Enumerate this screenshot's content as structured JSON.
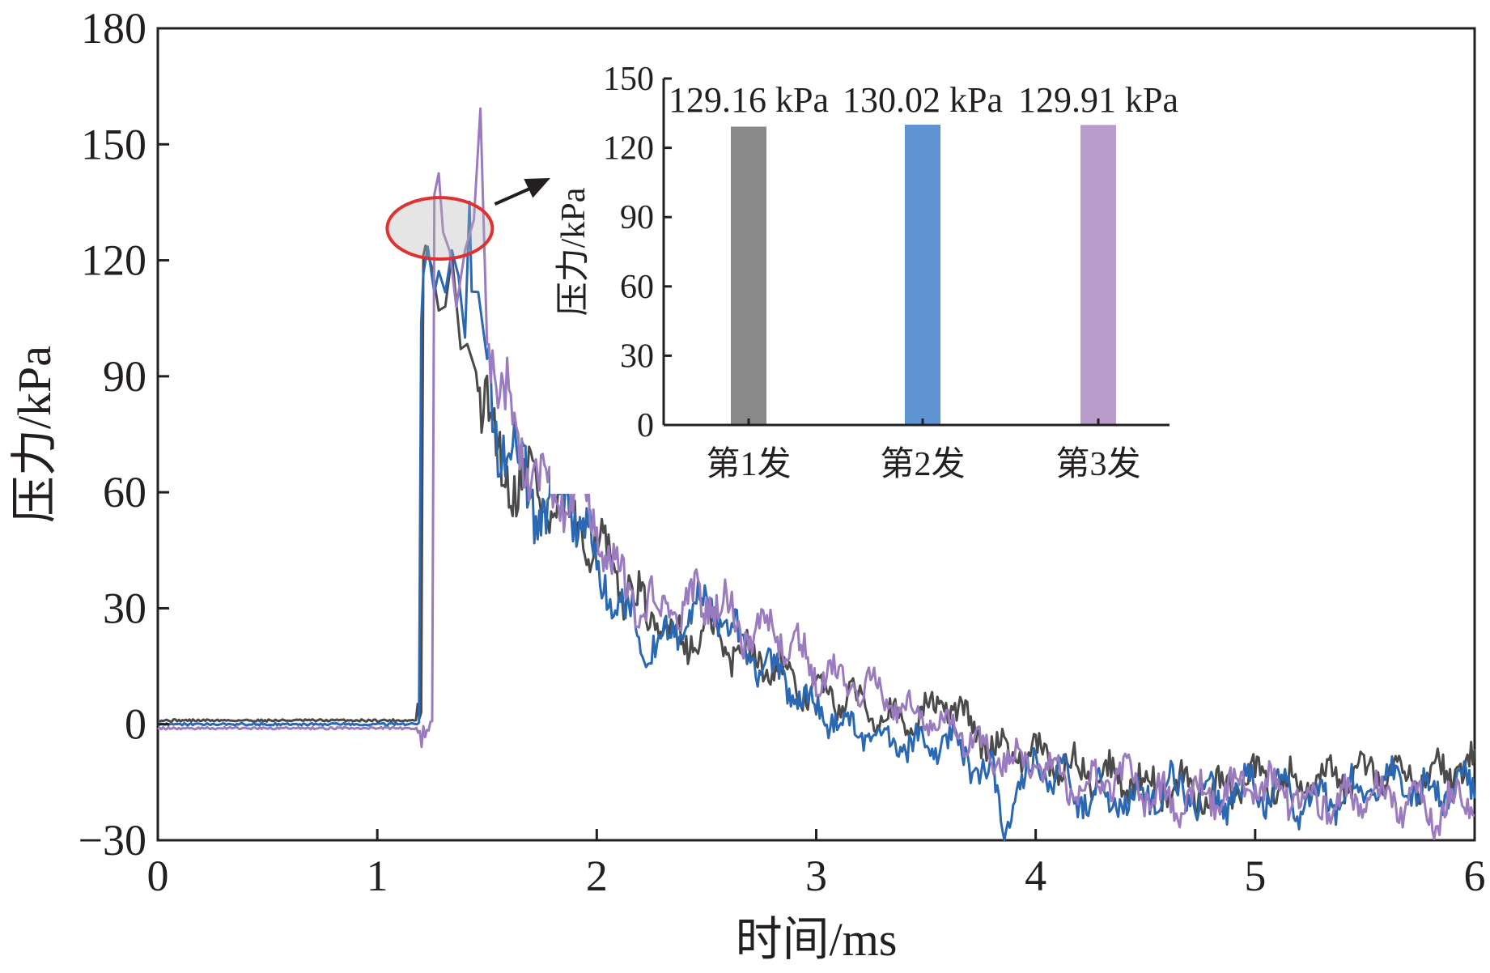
{
  "chart_data": [
    {
      "type": "line",
      "xlabel": "时间/ms",
      "ylabel": "压力/kPa",
      "xlim": [
        0,
        6
      ],
      "ylim": [
        -30,
        180
      ],
      "xticks": [
        "0",
        "1",
        "2",
        "3",
        "4",
        "5",
        "6"
      ],
      "yticks": [
        "−30",
        "0",
        "30",
        "60",
        "90",
        "120",
        "150",
        "180"
      ],
      "grid": false,
      "series": [
        {
          "color": "#4a4a4a",
          "x": [
            0,
            1.2,
            1.21,
            1.22,
            1.25,
            1.28,
            1.31,
            1.34,
            1.38,
            1.41,
            1.45,
            1.5,
            1.55,
            1.6,
            1.7,
            1.8,
            1.9,
            2.0,
            2.1,
            2.2,
            2.3,
            2.4,
            2.5,
            2.6,
            2.7,
            2.8,
            2.9,
            3.0,
            3.2,
            3.4,
            3.6,
            3.8,
            4.0,
            4.2,
            4.4,
            4.6,
            4.8,
            5.0,
            5.2,
            5.4,
            5.6,
            5.8,
            6.0
          ],
          "y": [
            1,
            1,
            108,
            110,
            128,
            108,
            112,
            108,
            96,
            104,
            92,
            80,
            68,
            66,
            62,
            56,
            52,
            46,
            38,
            30,
            25,
            22,
            24,
            20,
            18,
            16,
            10,
            8,
            6,
            0,
            6,
            -6,
            -8,
            -12,
            -14,
            -16,
            -18,
            -14,
            -16,
            -14,
            -12,
            -14,
            -10
          ]
        },
        {
          "color": "#2a68b3",
          "x": [
            0,
            1.19,
            1.2,
            1.21,
            1.23,
            1.26,
            1.28,
            1.31,
            1.34,
            1.37,
            1.4,
            1.42,
            1.43,
            1.46,
            1.5,
            1.55,
            1.6,
            1.7,
            1.8,
            1.9,
            2.0,
            2.1,
            2.2,
            2.3,
            2.4,
            2.5,
            2.6,
            2.7,
            2.8,
            2.9,
            3.0,
            3.2,
            3.4,
            3.6,
            3.8,
            3.85,
            4.0,
            4.2,
            4.4,
            4.6,
            4.8,
            5.0,
            5.2,
            5.4,
            5.6,
            5.8,
            6.0
          ],
          "y": [
            0,
            0,
            110,
            114,
            130,
            120,
            124,
            112,
            112,
            110,
            118,
            156,
            112,
            100,
            90,
            76,
            74,
            58,
            56,
            58,
            40,
            30,
            24,
            20,
            28,
            32,
            24,
            18,
            14,
            8,
            4,
            -2,
            -6,
            -4,
            -14,
            -24,
            -10,
            -18,
            -20,
            -16,
            -20,
            -16,
            -20,
            -18,
            -14,
            -18,
            -16
          ]
        },
        {
          "color": "#9b7bbf",
          "x": [
            0,
            1.25,
            1.26,
            1.28,
            1.3,
            1.33,
            1.36,
            1.4,
            1.44,
            1.47,
            1.5,
            1.55,
            1.6,
            1.7,
            1.8,
            1.9,
            2.0,
            2.1,
            2.2,
            2.3,
            2.4,
            2.5,
            2.6,
            2.7,
            2.8,
            2.9,
            3.0,
            3.2,
            3.4,
            3.6,
            3.8,
            4.0,
            4.2,
            4.4,
            4.6,
            4.8,
            5.0,
            5.2,
            5.4,
            5.6,
            5.8,
            6.0
          ],
          "y": [
            -1,
            -1,
            124,
            126,
            130,
            122,
            128,
            118,
            124,
            152,
            112,
            88,
            80,
            66,
            60,
            62,
            50,
            36,
            32,
            30,
            30,
            34,
            28,
            24,
            26,
            20,
            14,
            10,
            4,
            0,
            -8,
            -10,
            -16,
            -14,
            -20,
            -18,
            -16,
            -18,
            -20,
            -18,
            -22,
            -20
          ]
        }
      ],
      "annotation": {
        "type": "ellipse-highlight",
        "color": "#e03030",
        "center": [
          1.27,
          127
        ]
      }
    },
    {
      "type": "bar",
      "ylabel": "压力/kPa",
      "ylim": [
        0,
        150
      ],
      "yticks": [
        "0",
        "30",
        "60",
        "90",
        "120",
        "150"
      ],
      "categories": [
        "第1发",
        "第2发",
        "第3发"
      ],
      "values": [
        129.16,
        130.02,
        129.91
      ],
      "value_labels": [
        "129.16 kPa",
        "130.02 kPa",
        "129.91 kPa"
      ],
      "colors": [
        "#898989",
        "#5f94d2",
        "#b89ccb"
      ]
    }
  ]
}
